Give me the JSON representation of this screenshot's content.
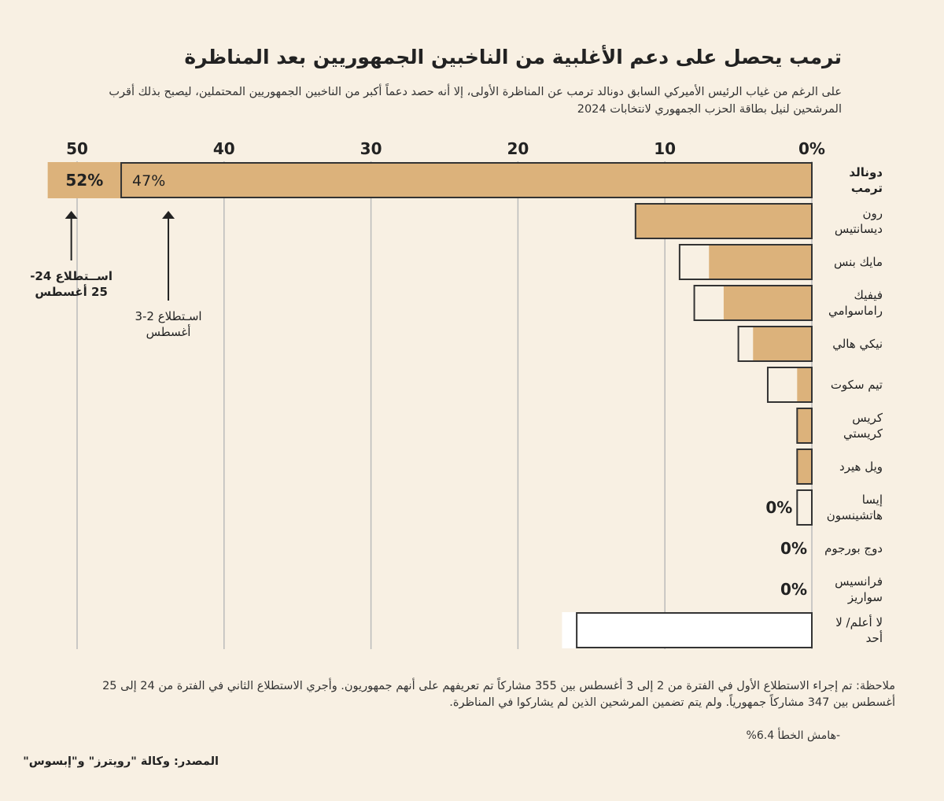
{
  "chart_data": {
    "type": "bar",
    "title": "ترمب يحصل على دعم الأغلبية من الناخبين الجمهوريين بعد المناظرة",
    "subtitle": "على الرغم من غياب الرئيس الأميركي السابق دونالد ترمب عن المناظرة الأولى، إلا أنه حصد دعماً أكبر من الناخبين الجمهوريين المحتملين، ليصبح بذلك أقرب المرشحين لنيل بطاقة الحزب الجمهوري لانتخابات 2024",
    "categories": [
      "دونالد ترمب",
      "رون ديسانتيس",
      "مايك بنس",
      "فيفيك راماسوامي",
      "نيكي هالي",
      "تيم سكوت",
      "كريس كريستي",
      "ويل هيرد",
      "إيسا هاتشينسون",
      "دوج بورجوم",
      "فرانسيس سواريز",
      "لا أعلم/ لا أحد"
    ],
    "series": [
      {
        "name": "اســتطلاع 24-25 أغسطس",
        "color": "#dcb27b",
        "colors": [
          "#dcb27b",
          "#dcb27b",
          "#dcb27b",
          "#dcb27b",
          "#dcb27b",
          "#dcb27b",
          "#dcb27b",
          "#dcb27b",
          "#dcb27b",
          "#dcb27b",
          "#dcb27b",
          "#ffffff"
        ],
        "values": [
          52,
          12,
          7,
          6,
          4,
          1,
          1,
          1,
          0,
          0,
          0,
          17
        ],
        "value_labels": [
          "52%",
          null,
          null,
          null,
          null,
          null,
          null,
          null,
          "0%",
          "0%",
          "0%",
          null
        ]
      },
      {
        "name": "اسـتطلاع 2-3 أغسطس",
        "color": "#333333",
        "values": [
          47,
          12,
          9,
          8,
          5,
          3,
          1,
          1,
          1,
          0,
          0,
          16
        ],
        "value_labels": [
          "47%",
          null,
          null,
          null,
          null,
          null,
          null,
          null,
          null,
          null,
          null,
          null
        ]
      }
    ],
    "xlim": [
      0,
      50
    ],
    "xticks": [
      {
        "value": 0,
        "label": "0%"
      },
      10,
      20,
      30,
      40,
      50
    ],
    "grid": true,
    "note": "ملاحظة: تم إجراء الاستطلاع الأول في الفترة من 2 إلى 3 أغسطس بين 355 مشاركاً تم تعريفهم على أنهم جمهوريون. وأجري الاستطلاع الثاني في الفترة من 24 إلى 25 أغسطس بين 347 مشاركاً جمهورياً.  ولم يتم تضمين المرشحين الذين لم يشاركوا في المناظرة.",
    "margin_of_error": "-هامش الخطأ 6.4%",
    "source": "المصدر: وكالة \"رويترز\" و\"إبسوس\""
  }
}
